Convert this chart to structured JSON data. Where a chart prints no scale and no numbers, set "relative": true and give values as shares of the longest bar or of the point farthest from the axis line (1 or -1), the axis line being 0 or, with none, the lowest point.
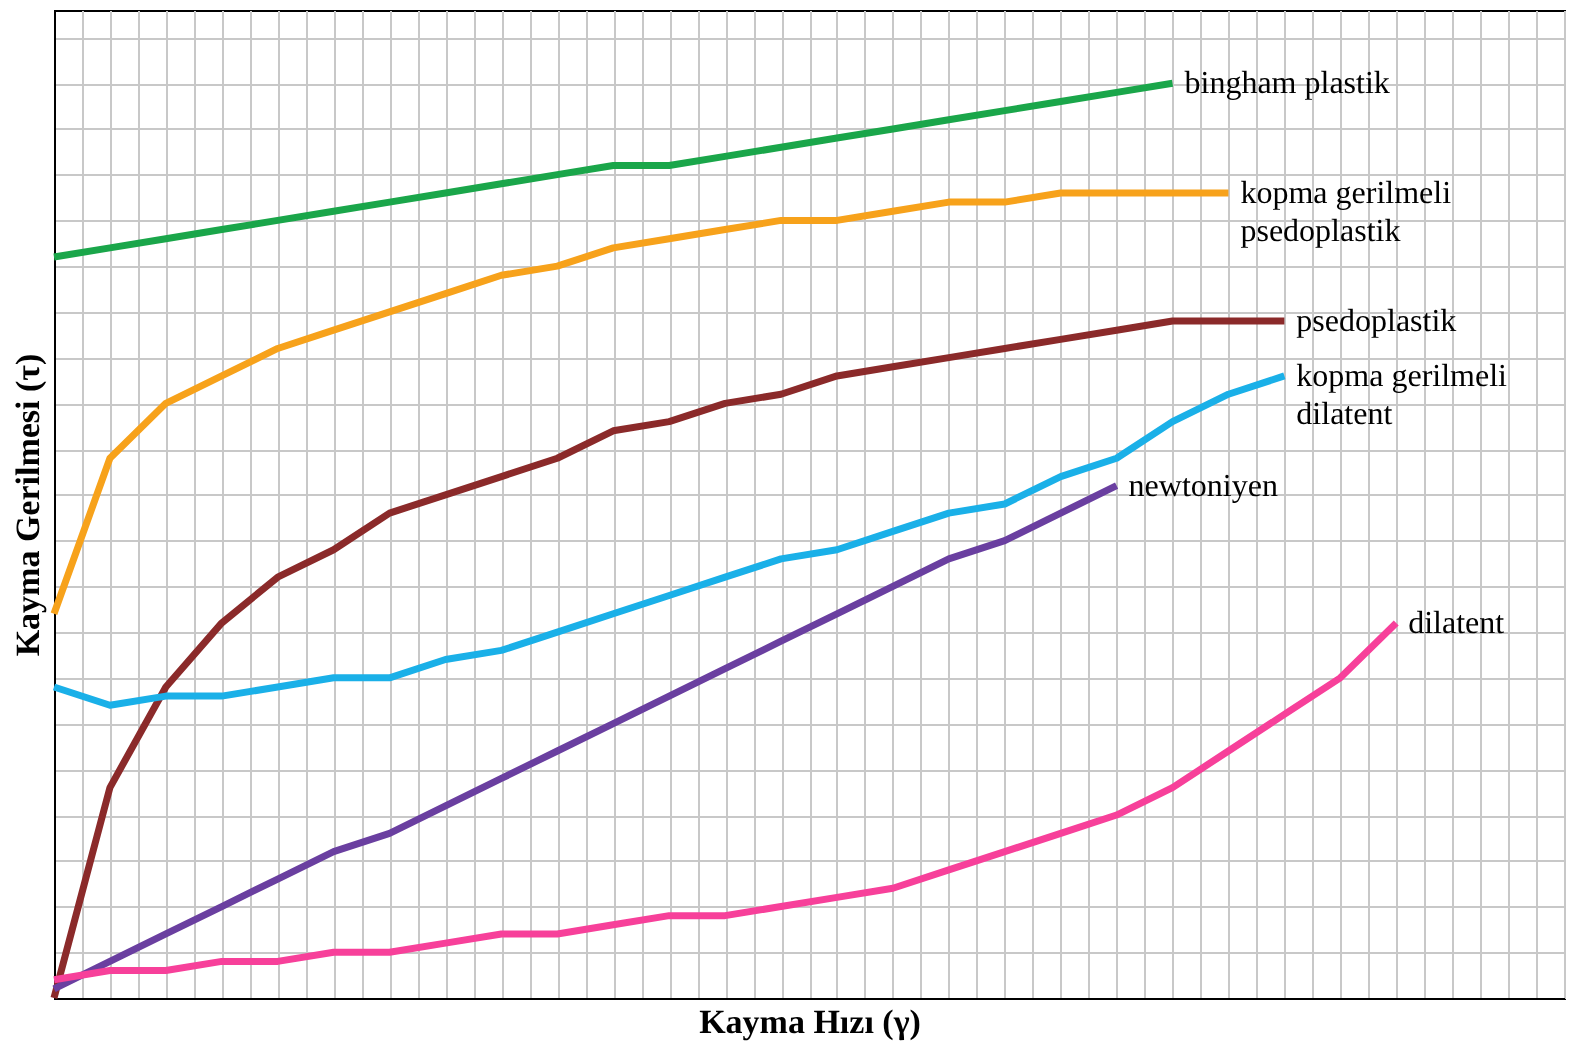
{
  "chart_data": {
    "type": "line",
    "relative": true,
    "xlabel": "Kayma Hızı (γ)",
    "ylabel": "Kayma Gerilmesi (τ)",
    "grid": true,
    "legend": false,
    "marker": "none",
    "line_style": "solid",
    "categories": [
      null,
      null,
      null,
      null,
      null,
      null,
      null,
      null,
      null,
      null,
      null,
      null,
      null,
      null,
      null,
      null,
      null,
      null,
      null,
      null,
      null,
      null,
      null,
      null,
      null
    ],
    "series": [
      {
        "name": "bingham plastik",
        "color": "#1aa64a",
        "values": [
          0.81,
          0.82,
          0.83,
          0.84,
          0.85,
          0.86,
          0.87,
          0.88,
          0.89,
          0.9,
          0.91,
          0.91,
          0.92,
          0.93,
          0.94,
          0.95,
          0.96,
          0.97,
          0.98,
          0.99,
          1.0,
          null,
          null,
          null,
          null
        ]
      },
      {
        "name": "kopma gerilmeli\npsedoplastik",
        "color": "#f7a21b",
        "values": [
          0.42,
          0.59,
          0.65,
          0.68,
          0.71,
          0.73,
          0.75,
          0.77,
          0.79,
          0.8,
          0.82,
          0.83,
          0.84,
          0.85,
          0.85,
          0.86,
          0.87,
          0.87,
          0.88,
          0.88,
          0.88,
          0.88,
          null,
          null,
          null
        ]
      },
      {
        "name": "psedoplastik",
        "color": "#8b2a2a",
        "values": [
          0.0,
          0.23,
          0.34,
          0.41,
          0.46,
          0.49,
          0.53,
          0.55,
          0.57,
          0.59,
          0.62,
          0.63,
          0.65,
          0.66,
          0.68,
          0.69,
          0.7,
          0.71,
          0.72,
          0.73,
          0.74,
          0.74,
          0.74,
          null,
          null
        ]
      },
      {
        "name": "kopma gerilmeli\ndilatent",
        "color": "#1ab0e8",
        "values": [
          0.34,
          0.32,
          0.33,
          0.33,
          0.34,
          0.35,
          0.35,
          0.37,
          0.38,
          0.4,
          0.42,
          0.44,
          0.46,
          0.48,
          0.49,
          0.51,
          0.53,
          0.54,
          0.57,
          0.59,
          0.63,
          0.66,
          0.68,
          null,
          null
        ]
      },
      {
        "name": "newtoniyen",
        "color": "#6a3fa0",
        "values": [
          0.01,
          0.04,
          0.07,
          0.1,
          0.13,
          0.16,
          0.18,
          0.21,
          0.24,
          0.27,
          0.3,
          0.33,
          0.36,
          0.39,
          0.42,
          0.45,
          0.48,
          0.5,
          0.53,
          0.56,
          null,
          null,
          null,
          null,
          null
        ]
      },
      {
        "name": "dilatent",
        "color": "#f7409a",
        "values": [
          0.02,
          0.03,
          0.03,
          0.04,
          0.04,
          0.05,
          0.05,
          0.06,
          0.07,
          0.07,
          0.08,
          0.09,
          0.09,
          0.1,
          0.11,
          0.12,
          0.14,
          0.16,
          0.18,
          0.2,
          0.23,
          0.27,
          0.31,
          0.35,
          0.41
        ]
      }
    ]
  }
}
